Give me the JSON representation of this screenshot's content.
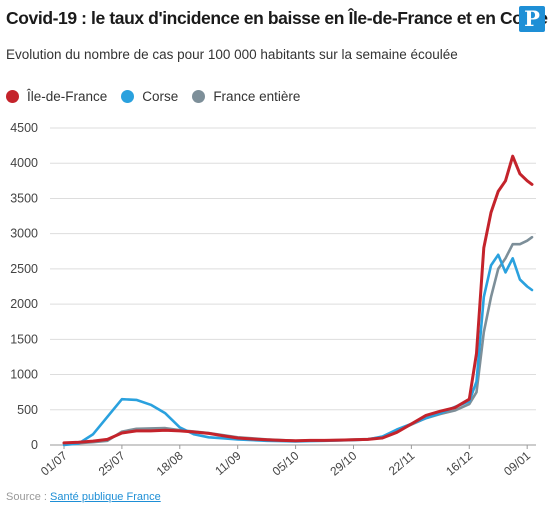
{
  "header": {
    "title": "Covid-19 : le taux d'incidence en baisse en Île-de-France et en Corse",
    "logo_letter": "P"
  },
  "footer": {
    "source_label": "Source : ",
    "source_link": "Santé publique France"
  },
  "chart_data": {
    "type": "line",
    "subtitle": "Evolution du nombre de cas pour 100 000 habitants sur la semaine écoulée",
    "xlabel": "",
    "ylabel": "",
    "ylim": [
      0,
      4500
    ],
    "yticks": [
      0,
      500,
      1000,
      1500,
      2000,
      2500,
      3000,
      3500,
      4000,
      4500
    ],
    "grid": true,
    "legend_position": "top-left",
    "xticks": [
      "01/07",
      "25/07",
      "18/08",
      "11/09",
      "05/10",
      "29/10",
      "22/11",
      "16/12",
      "09/01"
    ],
    "x": [
      "01/07",
      "07/07",
      "13/07",
      "19/07",
      "25/07",
      "31/07",
      "06/08",
      "12/08",
      "18/08",
      "24/08",
      "30/08",
      "05/09",
      "11/09",
      "17/09",
      "23/09",
      "29/09",
      "05/10",
      "11/10",
      "17/10",
      "23/10",
      "29/10",
      "04/11",
      "10/11",
      "16/11",
      "22/11",
      "28/11",
      "04/12",
      "10/12",
      "16/12",
      "19/12",
      "22/12",
      "25/12",
      "28/12",
      "31/12",
      "03/01",
      "06/01",
      "09/01",
      "11/01"
    ],
    "series": [
      {
        "name": "Île-de-France",
        "color": "#c4232b",
        "values": [
          30,
          40,
          55,
          80,
          170,
          200,
          200,
          210,
          200,
          185,
          165,
          130,
          100,
          85,
          75,
          65,
          60,
          65,
          65,
          70,
          75,
          80,
          100,
          180,
          300,
          420,
          480,
          530,
          650,
          1300,
          2800,
          3300,
          3600,
          3750,
          4100,
          3850,
          3750,
          3700
        ]
      },
      {
        "name": "Corse",
        "color": "#2aa1de",
        "values": [
          0,
          20,
          150,
          400,
          650,
          640,
          570,
          450,
          250,
          150,
          110,
          95,
          80,
          70,
          60,
          55,
          50,
          55,
          60,
          65,
          70,
          80,
          120,
          220,
          300,
          380,
          450,
          540,
          620,
          900,
          2100,
          2550,
          2700,
          2450,
          2650,
          2350,
          2250,
          2200
        ]
      },
      {
        "name": "France entière",
        "color": "#7d8f99",
        "values": [
          20,
          25,
          40,
          60,
          190,
          230,
          235,
          240,
          210,
          190,
          170,
          140,
          110,
          95,
          80,
          70,
          60,
          62,
          65,
          70,
          78,
          85,
          110,
          200,
          290,
          380,
          440,
          490,
          580,
          750,
          1600,
          2100,
          2500,
          2650,
          2850,
          2850,
          2900,
          2950
        ]
      }
    ]
  }
}
